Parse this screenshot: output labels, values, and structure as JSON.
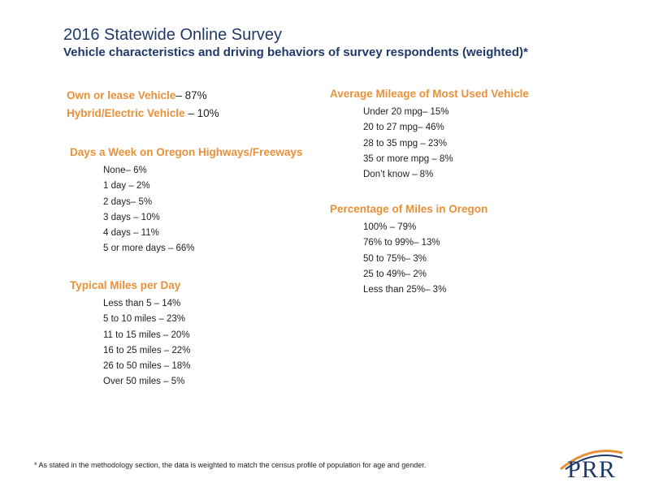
{
  "header": {
    "title": "2016 Statewide Online Survey",
    "subtitle": "Vehicle characteristics and driving behaviors of survey respondents (weighted)*"
  },
  "ownership": {
    "own_label": "Own or lease Vehicle",
    "own_value": "– 87%",
    "hybrid_label": "Hybrid/Electric Vehicle",
    "hybrid_value": " – 10%"
  },
  "days_per_week": {
    "title": "Days a Week on Oregon Highways/Freeways",
    "items": [
      "None– 6%",
      "1 day – 2%",
      "2 days– 5%",
      "3 days – 10%",
      "4 days – 11%",
      "5 or more days – 66%"
    ]
  },
  "miles_per_day": {
    "title": "Typical Miles per Day",
    "items": [
      "Less than 5 – 14%",
      "5 to 10 miles – 23%",
      "11 to 15 miles – 20%",
      "16 to 25 miles – 22%",
      "26 to 50 miles – 18%",
      "Over 50 miles – 5%"
    ]
  },
  "mileage": {
    "title": "Average Mileage of Most Used Vehicle",
    "items": [
      "Under 20 mpg– 15%",
      "20 to 27 mpg– 46%",
      "28 to 35 mpg – 23%",
      "35 or more mpg – 8%",
      "Don’t know – 8%"
    ]
  },
  "oregon_miles": {
    "title": "Percentage of Miles in Oregon",
    "items": [
      "100% – 79%",
      "76% to 99%– 13%",
      "50 to 75%– 3%",
      "25 to 49%– 2%",
      "Less than 25%– 3%"
    ]
  },
  "footnote": "* As stated in the methodology section, the data is weighted to match the census profile of population for age and gender.",
  "logo": {
    "text": "PRR",
    "primary_color": "#1f3a68",
    "accent_color": "#e8913a"
  }
}
